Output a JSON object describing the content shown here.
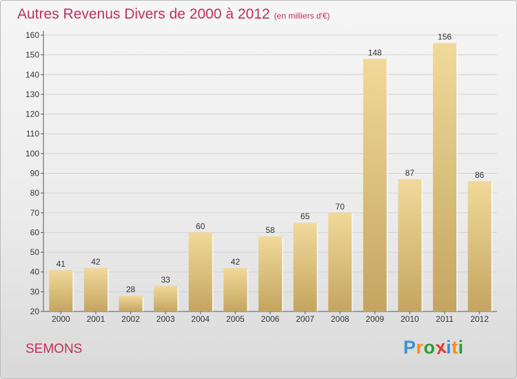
{
  "title": "Autres Revenus Divers de 2000 à 2012",
  "subtitle": "(en milliers d'€)",
  "place": "SEMONS",
  "logo": {
    "letters": [
      {
        "ch": "P",
        "color": "#3a8fd6"
      },
      {
        "ch": "r",
        "color": "#f28c1e"
      },
      {
        "ch": "o",
        "color": "#2f9a3b"
      },
      {
        "ch": "x",
        "color": "#e23a2e"
      },
      {
        "ch": "i",
        "color": "#3a8fd6"
      },
      {
        "ch": "t",
        "color": "#f28c1e"
      },
      {
        "ch": "i",
        "color": "#2f9a3b"
      }
    ]
  },
  "colors": {
    "accent": "#c0305c",
    "bar": "#dcc07a",
    "bar_light": "#f1d99a",
    "bar_dark": "#c4a560"
  },
  "chart_data": {
    "type": "bar",
    "title": "Autres Revenus Divers de 2000 à 2012",
    "subtitle": "(en milliers d'€)",
    "categories": [
      "2000",
      "2001",
      "2002",
      "2003",
      "2004",
      "2005",
      "2006",
      "2007",
      "2008",
      "2009",
      "2010",
      "2011",
      "2012"
    ],
    "values": [
      41,
      42,
      28,
      33,
      60,
      42,
      58,
      65,
      70,
      148,
      87,
      156,
      86
    ],
    "ylim": [
      20,
      160
    ],
    "yticks": [
      20,
      30,
      40,
      50,
      60,
      70,
      80,
      90,
      100,
      110,
      120,
      130,
      140,
      150,
      160
    ],
    "grid": true,
    "legend": "none"
  }
}
